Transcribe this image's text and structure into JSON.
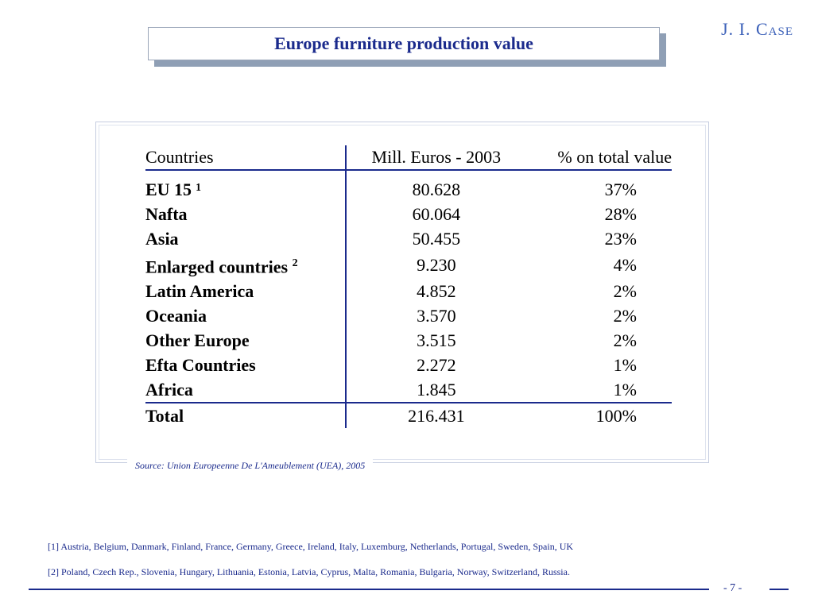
{
  "title": "Europe furniture production value",
  "logo": "J. I. Case",
  "table": {
    "headers": [
      "Countries",
      "Mill. Euros - 2003",
      "% on total value"
    ],
    "rows": [
      {
        "country": "EU 15 ¹",
        "sup": "",
        "value": "80.628",
        "pct": "37%"
      },
      {
        "country": "Nafta",
        "sup": "",
        "value": "60.064",
        "pct": "28%"
      },
      {
        "country": "Asia",
        "sup": "",
        "value": "50.455",
        "pct": "23%"
      },
      {
        "country": "Enlarged countries",
        "sup": "2",
        "value": "9.230",
        "pct": "4%"
      },
      {
        "country": "Latin America",
        "sup": "",
        "value": "4.852",
        "pct": "2%"
      },
      {
        "country": "Oceania",
        "sup": "",
        "value": "3.570",
        "pct": "2%"
      },
      {
        "country": "Other Europe",
        "sup": "",
        "value": "3.515",
        "pct": "2%"
      },
      {
        "country": "Efta Countries",
        "sup": "",
        "value": "2.272",
        "pct": "1%"
      },
      {
        "country": "Africa",
        "sup": "",
        "value": "1.845",
        "pct": "1%"
      }
    ],
    "total": {
      "country": "Total",
      "value": "216.431",
      "pct": "100%"
    }
  },
  "source": "Source: Union Europeenne De L'Ameublement (UEA), 2005",
  "notes": [
    "[1] Austria, Belgium, Danmark, Finland, France, Germany, Greece, Ireland, Italy, Luxemburg, Netherlands, Portugal, Sweden, Spain, UK",
    "[2] Poland, Czech Rep., Slovenia, Hungary, Lithuania, Estonia, Latvia, Cyprus, Malta, Romania, Bulgaria, Norway, Switzerland, Russia."
  ],
  "page_number": "- 7 -",
  "colors": {
    "accent": "#1a2a8c",
    "shadow": "#8f9fb5",
    "logo": "#3a5fb8"
  }
}
